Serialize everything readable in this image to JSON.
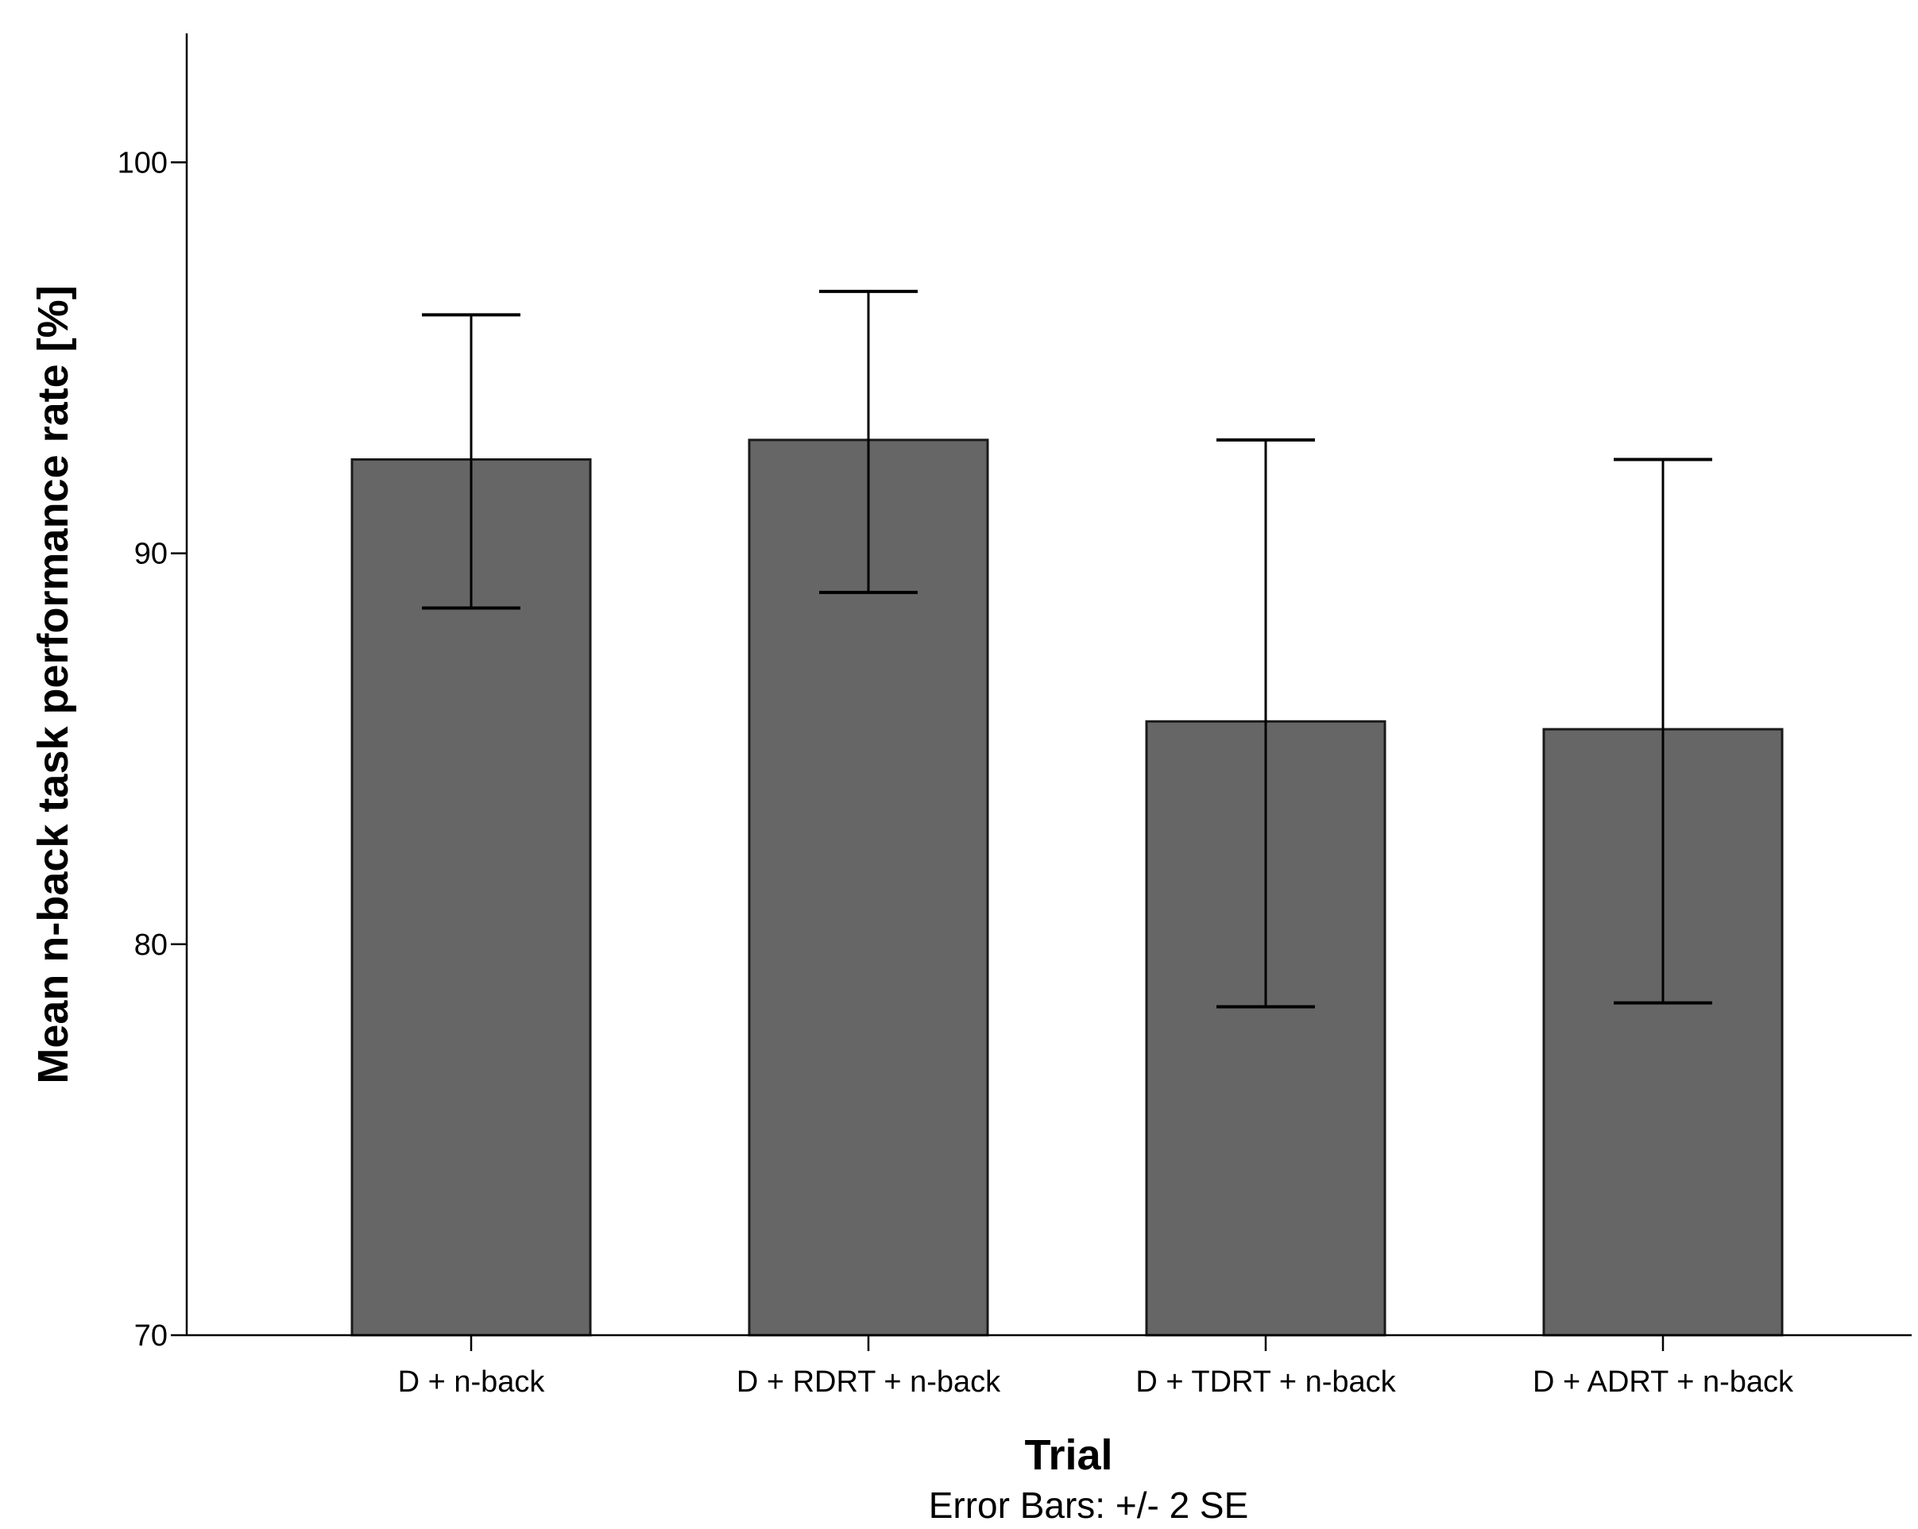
{
  "chart_data": {
    "type": "bar",
    "categories": [
      "D + n-back",
      "D + RDRT + n-back",
      "D + TDRT + n-back",
      "D + ADRT + n-back"
    ],
    "values": [
      92.4,
      92.9,
      85.7,
      85.5
    ],
    "error_low": [
      88.6,
      89.0,
      78.4,
      78.5
    ],
    "error_high": [
      96.1,
      96.7,
      92.9,
      92.4
    ],
    "ylim": [
      70,
      103.3
    ],
    "yticks": [
      70,
      80,
      90,
      100
    ],
    "xlabel": "Trial",
    "ylabel": "Mean n-back task performance rate [%]",
    "note": "Error Bars: +/- 2 SE",
    "bar_color": "#666666",
    "bar_edge_color": "#1a1a1a",
    "axis_color": "#000000"
  }
}
